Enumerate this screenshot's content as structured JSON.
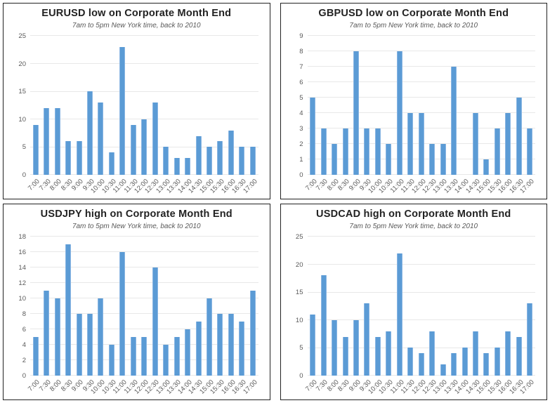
{
  "colors": {
    "bar_fill": "#5b9bd5",
    "bar_edge": "#8ab6e3",
    "gridline": "#e8e8e8",
    "axis_text": "#595959",
    "title_text": "#222222",
    "panel_border": "#222222"
  },
  "categories": [
    "7:00",
    "7:30",
    "8:00",
    "8:30",
    "9:00",
    "9:30",
    "10:00",
    "10:30",
    "11:00",
    "11:30",
    "12:00",
    "12:30",
    "13:00",
    "13:30",
    "14:00",
    "14:30",
    "15:00",
    "15:30",
    "16:00",
    "16:30",
    "17:00"
  ],
  "chart_data": [
    {
      "type": "bar",
      "title": "EURUSD low on Corporate Month End",
      "subtitle": "7am to 5pm New York time, back to 2010",
      "categories": [
        "7:00",
        "7:30",
        "8:00",
        "8:30",
        "9:00",
        "9:30",
        "10:00",
        "10:30",
        "11:00",
        "11:30",
        "12:00",
        "12:30",
        "13:00",
        "13:30",
        "14:00",
        "14:30",
        "15:00",
        "15:30",
        "16:00",
        "16:30",
        "17:00"
      ],
      "values": [
        9,
        12,
        12,
        6,
        6,
        15,
        13,
        4,
        23,
        9,
        10,
        13,
        5,
        3,
        3,
        7,
        5,
        6,
        8,
        5,
        5
      ],
      "ylim": [
        0,
        25
      ],
      "ytick_step": 5,
      "grid": true,
      "legend": "none"
    },
    {
      "type": "bar",
      "title": "GBPUSD low on Corporate Month End",
      "subtitle": "7am to 5pm New York time, back to 2010",
      "categories": [
        "7:00",
        "7:30",
        "8:00",
        "8:30",
        "9:00",
        "9:30",
        "10:00",
        "10:30",
        "11:00",
        "11:30",
        "12:00",
        "12:30",
        "13:00",
        "13:30",
        "14:00",
        "14:30",
        "15:00",
        "15:30",
        "16:00",
        "16:30",
        "17:00"
      ],
      "values": [
        5,
        3,
        2,
        3,
        8,
        3,
        3,
        2,
        8,
        4,
        4,
        2,
        2,
        7,
        0,
        4,
        1,
        3,
        4,
        5,
        3
      ],
      "ylim": [
        0,
        9
      ],
      "ytick_step": 1,
      "grid": true,
      "legend": "none"
    },
    {
      "type": "bar",
      "title": "USDJPY high on Corporate Month End",
      "subtitle": "7am to 5pm New York time, back to 2010",
      "categories": [
        "7:00",
        "7:30",
        "8:00",
        "8:30",
        "9:00",
        "9:30",
        "10:00",
        "10:30",
        "11:00",
        "11:30",
        "12:00",
        "12:30",
        "13:00",
        "13:30",
        "14:00",
        "14:30",
        "15:00",
        "15:30",
        "16:00",
        "16:30",
        "17:00"
      ],
      "values": [
        5,
        11,
        10,
        17,
        8,
        8,
        10,
        4,
        16,
        5,
        5,
        14,
        4,
        5,
        6,
        7,
        10,
        8,
        8,
        7,
        11
      ],
      "ylim": [
        0,
        18
      ],
      "ytick_step": 2,
      "grid": true,
      "legend": "none"
    },
    {
      "type": "bar",
      "title": "USDCAD high on Corporate Month End",
      "subtitle": "7am to 5pm New York time, back to 2010",
      "categories": [
        "7:00",
        "7:30",
        "8:00",
        "8:30",
        "9:00",
        "9:30",
        "10:00",
        "10:30",
        "11:00",
        "11:30",
        "12:00",
        "12:30",
        "13:00",
        "13:30",
        "14:00",
        "14:30",
        "15:00",
        "15:30",
        "16:00",
        "16:30",
        "17:00"
      ],
      "values": [
        11,
        18,
        10,
        7,
        10,
        13,
        7,
        8,
        22,
        5,
        4,
        8,
        2,
        4,
        5,
        8,
        4,
        5,
        8,
        7,
        13
      ],
      "ylim": [
        0,
        25
      ],
      "ytick_step": 5,
      "grid": true,
      "legend": "none"
    }
  ]
}
